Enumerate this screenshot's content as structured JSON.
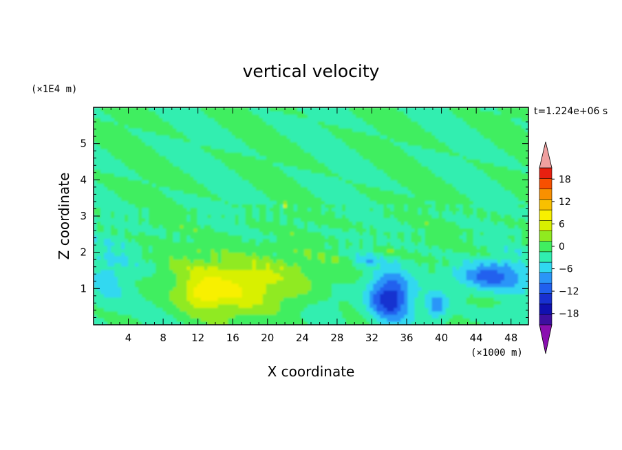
{
  "chart_data": {
    "type": "heatmap",
    "title": "vertical velocity",
    "xlabel": "X coordinate",
    "ylabel": "Z coordinate",
    "x_unit_label": "(×1000 m)",
    "y_unit_label": "(×1E4 m)",
    "time_label": "t=1.224e+06 s",
    "xlim": [
      0,
      50
    ],
    "ylim": [
      0,
      6
    ],
    "x_ticks": [
      4,
      8,
      12,
      16,
      20,
      24,
      28,
      32,
      36,
      40,
      44,
      48
    ],
    "y_ticks": [
      1,
      2,
      3,
      4,
      5
    ],
    "colorbar": {
      "levels": [
        -21,
        -18,
        -15,
        -12,
        -9,
        -6,
        -3,
        0,
        3,
        6,
        9,
        12,
        15,
        18,
        21
      ],
      "tick_labels": [
        "18",
        "12",
        "6",
        "0",
        "−6",
        "−12",
        "−18"
      ],
      "tick_values": [
        18,
        12,
        6,
        0,
        -6,
        -12,
        -18
      ],
      "colors": [
        "#3d0fa0",
        "#1010b0",
        "#1830d0",
        "#2060ee",
        "#2a95f8",
        "#30d8f0",
        "#30eeb0",
        "#40ee60",
        "#90ea20",
        "#d8f000",
        "#f8f000",
        "#f8c000",
        "#f89000",
        "#f85000",
        "#e82010"
      ],
      "under_color": "#8a10b0",
      "over_color": "#f0a0a0"
    },
    "features": [
      {
        "name": "updraft",
        "x": 17,
        "z": 1.0,
        "peak": 14
      },
      {
        "name": "downdraft",
        "x": 34,
        "z": 0.7,
        "peak": -14
      },
      {
        "name": "downdraft",
        "x": 45,
        "z": 1.3,
        "peak": -10
      }
    ]
  }
}
